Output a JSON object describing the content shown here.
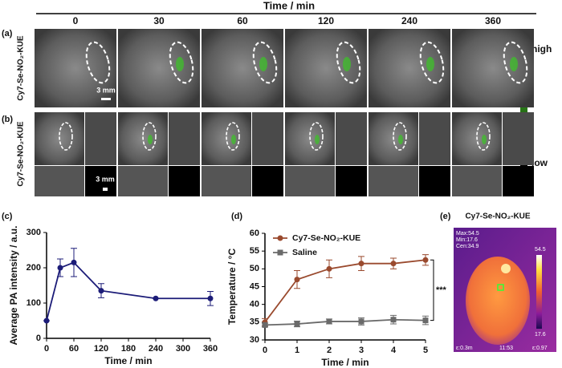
{
  "figure": {
    "time_header": "Time / min",
    "times": [
      "0",
      "30",
      "60",
      "120",
      "240",
      "360"
    ],
    "panel_labels": [
      "(a)",
      "(b)",
      "(c)",
      "(d)",
      "(e)"
    ],
    "row_labels": [
      "Cy7-Se-NO₂-KUE",
      "Cy7-Se-NO₂-KUE"
    ],
    "scale_bars": [
      "3 mm",
      "3 mm"
    ],
    "colorbar": {
      "high": "high",
      "low": "low"
    }
  },
  "thermal": {
    "title": "Cy7-Se-NO₂-KUE",
    "readout": [
      "Max:54.5",
      "Min:17.6",
      "Cen:34.9"
    ],
    "scale_max": "54.5",
    "scale_min": "17.6",
    "footer": [
      "ε:0.3m",
      "11:53",
      "ε:0.97"
    ]
  },
  "chart_data": [
    {
      "type": "line",
      "xlabel": "Time / min",
      "ylabel": "Average PA intensity / a.u.",
      "x": [
        0,
        30,
        60,
        120,
        240,
        360
      ],
      "values": [
        50,
        200,
        215,
        135,
        113,
        113
      ],
      "errors": [
        0,
        25,
        40,
        20,
        0,
        20
      ],
      "color": "#1c1c78",
      "marker": "circle",
      "xlim": [
        0,
        360
      ],
      "xticks": [
        0,
        60,
        120,
        180,
        240,
        300,
        360
      ],
      "ylim": [
        0,
        300
      ],
      "yticks": [
        0,
        100,
        200,
        300
      ]
    },
    {
      "type": "line",
      "xlabel": "Time / min",
      "ylabel": "Temperature / °C",
      "x": [
        0,
        1,
        2,
        3,
        4,
        5
      ],
      "series": [
        {
          "name": "Cy7-Se-NO₂-KUE",
          "color": "#9a4a2e",
          "marker": "circle",
          "values": [
            35,
            47,
            50,
            51.5,
            51.5,
            52.5
          ],
          "errors": [
            1,
            2.5,
            2.5,
            2,
            1.5,
            1.5
          ]
        },
        {
          "name": "Saline",
          "color": "#6a6a6a",
          "marker": "square",
          "values": [
            34.2,
            34.5,
            35.2,
            35.2,
            35.7,
            35.5
          ],
          "errors": [
            0.5,
            0.8,
            0.7,
            1,
            1.2,
            1.2
          ]
        }
      ],
      "annotation": "***",
      "legend": "upper left",
      "xlim": [
        0,
        5
      ],
      "xticks": [
        0,
        1,
        2,
        3,
        4,
        5
      ],
      "ylim": [
        30,
        60
      ],
      "yticks": [
        30,
        35,
        40,
        45,
        50,
        55,
        60
      ]
    }
  ]
}
